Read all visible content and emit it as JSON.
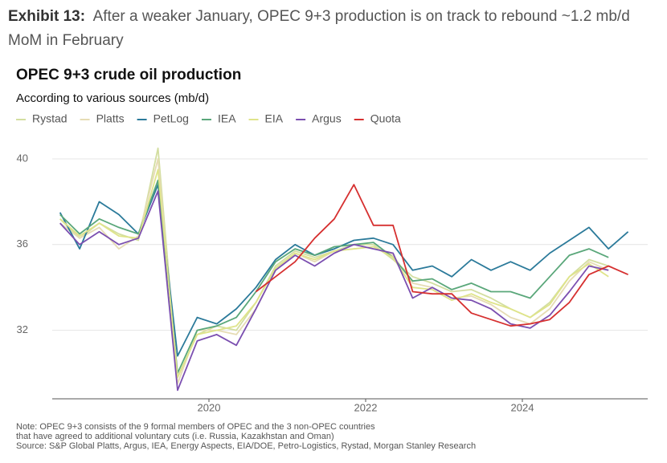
{
  "exhibit": {
    "label": "Exhibit 13:",
    "text": "After a weaker January, OPEC 9+3 production is on track to rebound ~1.2 mb/d MoM in February"
  },
  "chart_data": {
    "type": "line",
    "title": "OPEC 9+3 crude oil production",
    "subtitle": "According to various sources (mb/d)",
    "notes": [
      "Note: OPEC 9+3 consists of the 9 formal members of OPEC and the 3 non-OPEC countries",
      "that have agreed to additional voluntary cuts (i.e. Russia, Kazakhstan and Oman)",
      "Source: S&P Global Platts, Argus, IEA, Energy Aspects, EIA/DOE, Petro-Logistics, Rystad, Morgan Stanley Research"
    ],
    "x": [
      2018.1,
      2018.35,
      2018.6,
      2018.85,
      2019.1,
      2019.35,
      2019.6,
      2019.85,
      2020.1,
      2020.35,
      2020.6,
      2020.85,
      2021.1,
      2021.35,
      2021.6,
      2021.85,
      2022.1,
      2022.35,
      2022.6,
      2022.85,
      2023.1,
      2023.35,
      2023.6,
      2023.85,
      2024.1,
      2024.35,
      2024.6,
      2024.85,
      2025.1,
      2025.35
    ],
    "xlim": [
      2018.0,
      2025.6
    ],
    "xticks": [
      2020,
      2022,
      2024
    ],
    "ylim": [
      28.8,
      40.9
    ],
    "yticks": [
      32,
      36,
      40
    ],
    "grid": true,
    "series": [
      {
        "name": "Rystad",
        "color": "#d3dea0",
        "values": [
          37.2,
          36.3,
          37.0,
          36.5,
          36.2,
          40.5,
          29.8,
          31.8,
          32.2,
          32.0,
          33.3,
          35.0,
          35.7,
          35.4,
          35.7,
          36.0,
          36.0,
          35.3,
          34.5,
          34.2,
          33.8,
          33.9,
          33.5,
          33.0,
          32.6,
          33.3,
          34.5,
          35.3,
          35.0,
          null
        ]
      },
      {
        "name": "Platts",
        "color": "#e6dcb4",
        "values": [
          37.0,
          36.3,
          36.8,
          35.8,
          36.4,
          40.0,
          29.5,
          32.0,
          32.0,
          31.8,
          33.0,
          34.8,
          35.6,
          35.2,
          35.7,
          35.8,
          35.9,
          35.5,
          34.2,
          34.0,
          33.5,
          33.6,
          33.2,
          32.6,
          32.3,
          33.0,
          34.3,
          35.2,
          34.8,
          null
        ]
      },
      {
        "name": "PetLog",
        "color": "#2b7a9a",
        "values": [
          37.5,
          35.8,
          38.0,
          37.4,
          36.5,
          38.8,
          30.8,
          32.6,
          32.3,
          33.0,
          34.0,
          35.3,
          36.0,
          35.5,
          35.8,
          36.2,
          36.3,
          36.0,
          34.8,
          35.0,
          34.5,
          35.3,
          34.8,
          35.2,
          34.8,
          35.6,
          36.2,
          36.8,
          35.8,
          36.6
        ]
      },
      {
        "name": "IEA",
        "color": "#5aa77a",
        "values": [
          37.4,
          36.5,
          37.2,
          36.8,
          36.5,
          39.0,
          30.0,
          32.0,
          32.2,
          32.6,
          33.8,
          35.2,
          35.8,
          35.5,
          35.9,
          36.0,
          36.1,
          35.4,
          34.3,
          34.4,
          33.9,
          34.2,
          33.8,
          33.8,
          33.5,
          34.5,
          35.5,
          35.8,
          35.4,
          null
        ]
      },
      {
        "name": "EIA",
        "color": "#dfe48a",
        "values": [
          37.2,
          36.4,
          37.0,
          36.4,
          36.3,
          39.5,
          29.8,
          31.8,
          32.0,
          32.2,
          33.3,
          34.9,
          35.6,
          35.3,
          35.7,
          35.8,
          35.9,
          35.4,
          34.0,
          33.9,
          33.4,
          33.7,
          33.3,
          33.0,
          32.6,
          33.2,
          34.5,
          35.1,
          34.5,
          null
        ]
      },
      {
        "name": "Argus",
        "color": "#7b4fb0",
        "values": [
          37.0,
          36.0,
          36.6,
          36.0,
          36.3,
          38.5,
          29.2,
          31.5,
          31.8,
          31.3,
          33.0,
          34.8,
          35.5,
          35.0,
          35.6,
          36.0,
          35.8,
          35.6,
          33.5,
          34.0,
          33.5,
          33.4,
          33.0,
          32.3,
          32.1,
          32.7,
          33.8,
          35.0,
          34.8,
          null
        ]
      },
      {
        "name": "Quota",
        "color": "#d63030",
        "values": [
          null,
          null,
          null,
          null,
          null,
          null,
          null,
          null,
          null,
          null,
          33.8,
          34.5,
          35.2,
          36.3,
          37.2,
          38.8,
          36.9,
          36.9,
          33.8,
          33.7,
          33.7,
          32.8,
          32.5,
          32.2,
          32.3,
          32.5,
          33.3,
          34.6,
          35.0,
          34.6
        ]
      }
    ]
  }
}
